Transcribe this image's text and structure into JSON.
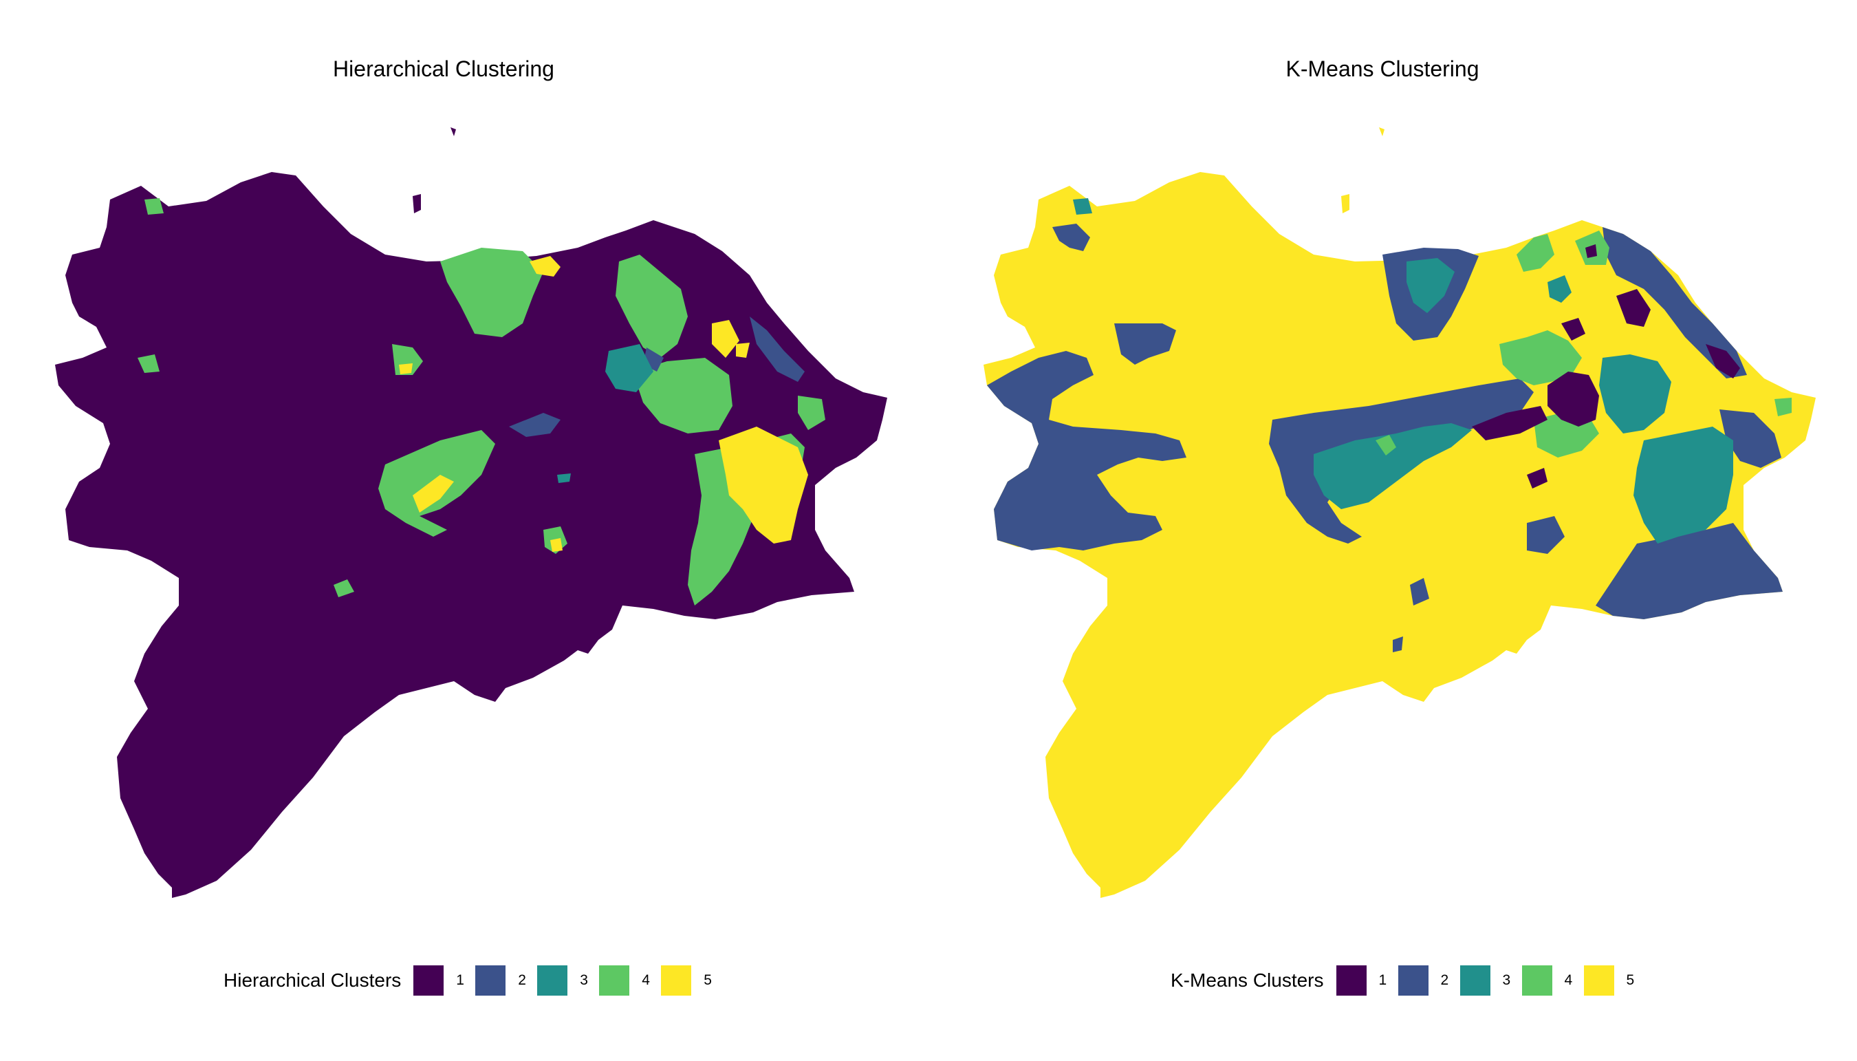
{
  "panels": [
    {
      "title": "Hierarchical Clustering",
      "base_cluster": "1",
      "legend": {
        "title": "Hierarchical Clusters",
        "items": [
          {
            "label": "1",
            "color": "#440154"
          },
          {
            "label": "2",
            "color": "#3B528B"
          },
          {
            "label": "3",
            "color": "#21908C"
          },
          {
            "label": "4",
            "color": "#5DC863"
          },
          {
            "label": "5",
            "color": "#FDE725"
          }
        ]
      }
    },
    {
      "title": "K-Means Clustering",
      "base_cluster": "5",
      "legend": {
        "title": "K-Means Clusters",
        "items": [
          {
            "label": "1",
            "color": "#440154"
          },
          {
            "label": "2",
            "color": "#3B528B"
          },
          {
            "label": "3",
            "color": "#21908C"
          },
          {
            "label": "4",
            "color": "#5DC863"
          },
          {
            "label": "5",
            "color": "#FDE725"
          }
        ]
      }
    }
  ]
}
